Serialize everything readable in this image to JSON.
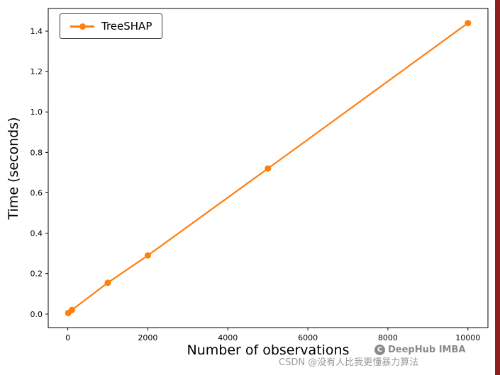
{
  "chart_data": {
    "type": "line",
    "title": "",
    "xlabel": "Number of observations",
    "ylabel": "Time (seconds)",
    "xlim": [
      -489,
      10500
    ],
    "ylim": [
      -0.067,
      1.512
    ],
    "xticks": [
      0,
      2000,
      4000,
      6000,
      8000,
      10000
    ],
    "yticks": [
      0.0,
      0.2,
      0.4,
      0.6,
      0.8,
      1.0,
      1.2,
      1.4
    ],
    "grid": false,
    "legend_position": "upper-left",
    "series": [
      {
        "name": "TreeSHAP",
        "color": "#ff7f0e",
        "marker": "circle",
        "x": [
          10,
          100,
          1000,
          2000,
          5000,
          10000
        ],
        "y": [
          0.005,
          0.02,
          0.155,
          0.29,
          0.72,
          1.44
        ]
      }
    ]
  },
  "legend": {
    "label": "TreeSHAP"
  },
  "watermarks": {
    "csdn": "CSDN @没有人比我更懂暴力算法",
    "deephub": "DeepHub IMBA",
    "deephub_symbol": "C"
  },
  "colors": {
    "accent": "#ff7f0e",
    "axis": "#000000",
    "edge_strip": "#8f1f1f",
    "watermark": "#9b9b9b"
  }
}
